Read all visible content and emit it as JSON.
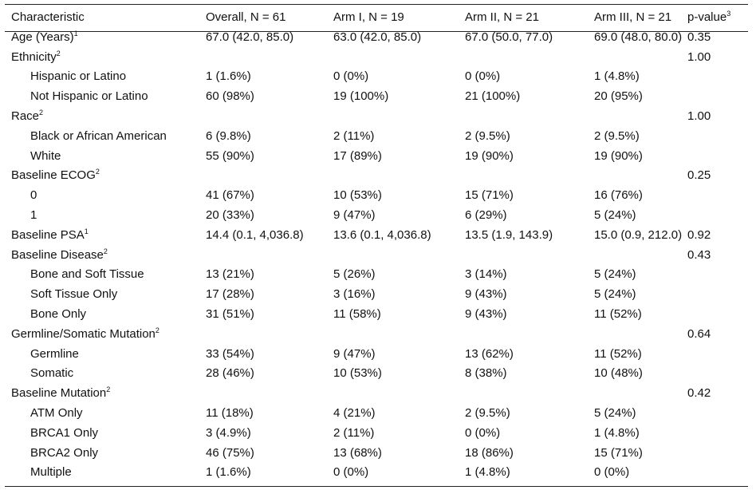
{
  "table": {
    "header": {
      "columns": [
        "Characteristic",
        "Overall, N = 61",
        "Arm I, N = 19",
        "Arm II, N = 21",
        "Arm III, N = 21"
      ],
      "p_value": "p-value",
      "p_value_sup": "3"
    },
    "groups": [
      {
        "label": "Age (Years)",
        "sup": "1",
        "values": [
          "67.0 (42.0, 85.0)",
          "63.0 (42.0, 85.0)",
          "67.0 (50.0, 77.0)",
          "69.0 (48.0, 80.0)"
        ],
        "p_value": "0.35"
      },
      {
        "label": "Ethnicity",
        "sup": "2",
        "p_value": "1.00",
        "items": [
          {
            "label": "Hispanic or Latino",
            "values": [
              "1 (1.6%)",
              "0 (0%)",
              "0 (0%)",
              "1 (4.8%)"
            ]
          },
          {
            "label": "Not Hispanic or Latino",
            "values": [
              "60 (98%)",
              "19 (100%)",
              "21 (100%)",
              "20 (95%)"
            ]
          }
        ]
      },
      {
        "label": "Race",
        "sup": "2",
        "p_value": "1.00",
        "items": [
          {
            "label": "Black or African American",
            "values": [
              "6 (9.8%)",
              "2 (11%)",
              "2 (9.5%)",
              "2 (9.5%)"
            ]
          },
          {
            "label": "White",
            "values": [
              "55 (90%)",
              "17 (89%)",
              "19 (90%)",
              "19 (90%)"
            ]
          }
        ]
      },
      {
        "label": "Baseline ECOG",
        "sup": "2",
        "p_value": "0.25",
        "items": [
          {
            "label": "0",
            "values": [
              "41 (67%)",
              "10 (53%)",
              "15 (71%)",
              "16 (76%)"
            ]
          },
          {
            "label": "1",
            "values": [
              "20 (33%)",
              "9 (47%)",
              "6 (29%)",
              "5 (24%)"
            ]
          }
        ]
      },
      {
        "label": "Baseline PSA",
        "sup": "1",
        "values": [
          "14.4 (0.1, 4,036.8)",
          "13.6 (0.1, 4,036.8)",
          "13.5 (1.9, 143.9)",
          "15.0 (0.9, 212.0)"
        ],
        "p_value": "0.92"
      },
      {
        "label": "Baseline Disease",
        "sup": "2",
        "p_value": "0.43",
        "items": [
          {
            "label": "Bone and Soft Tissue",
            "values": [
              "13 (21%)",
              "5 (26%)",
              "3 (14%)",
              "5 (24%)"
            ]
          },
          {
            "label": "Soft Tissue Only",
            "values": [
              "17 (28%)",
              "3 (16%)",
              "9 (43%)",
              "5 (24%)"
            ]
          },
          {
            "label": "Bone Only",
            "values": [
              "31 (51%)",
              "11 (58%)",
              "9 (43%)",
              "11 (52%)"
            ]
          }
        ]
      },
      {
        "label": "Germline/Somatic Mutation",
        "sup": "2",
        "p_value": "0.64",
        "items": [
          {
            "label": "Germline",
            "values": [
              "33 (54%)",
              "9 (47%)",
              "13 (62%)",
              "11 (52%)"
            ]
          },
          {
            "label": "Somatic",
            "values": [
              "28 (46%)",
              "10 (53%)",
              "8 (38%)",
              "10 (48%)"
            ]
          }
        ]
      },
      {
        "label": "Baseline Mutation",
        "sup": "2",
        "p_value": "0.42",
        "items": [
          {
            "label": "ATM Only",
            "values": [
              "11 (18%)",
              "4 (21%)",
              "2 (9.5%)",
              "5 (24%)"
            ]
          },
          {
            "label": "BRCA1 Only",
            "values": [
              "3 (4.9%)",
              "2 (11%)",
              "0 (0%)",
              "1 (4.8%)"
            ]
          },
          {
            "label": "BRCA2 Only",
            "values": [
              "46 (75%)",
              "13 (68%)",
              "18 (86%)",
              "15 (71%)"
            ]
          },
          {
            "label": "Multiple",
            "values": [
              "1 (1.6%)",
              "0 (0%)",
              "1 (4.8%)",
              "0 (0%)"
            ]
          }
        ]
      }
    ]
  }
}
